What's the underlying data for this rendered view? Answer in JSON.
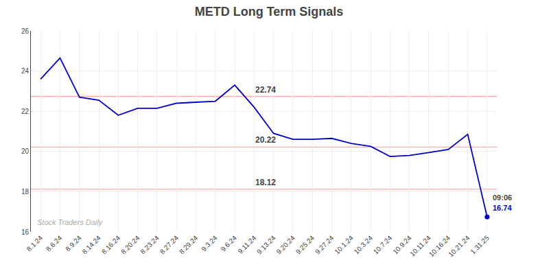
{
  "chart_data": {
    "type": "line",
    "title": "METD Long Term Signals",
    "categories": [
      "8.1.24",
      "8.6.24",
      "8.9.24",
      "8.14.24",
      "8.16.24",
      "8.20.24",
      "8.23.24",
      "8.27.24",
      "8.29.24",
      "9.3.24",
      "9.6.24",
      "9.11.24",
      "9.13.24",
      "9.20.24",
      "9.25.24",
      "9.27.24",
      "10.1.24",
      "10.3.24",
      "10.7.24",
      "10.9.24",
      "10.11.24",
      "10.16.24",
      "10.21.24",
      "1.31.25"
    ],
    "values": [
      23.6,
      24.65,
      22.7,
      22.55,
      21.8,
      22.15,
      22.15,
      22.4,
      22.45,
      22.5,
      23.3,
      22.2,
      20.9,
      20.6,
      20.6,
      20.65,
      20.4,
      20.25,
      19.75,
      19.8,
      19.95,
      20.1,
      20.85,
      16.74
    ],
    "color": "#0000cc",
    "ylim": [
      16,
      26
    ],
    "yticks": [
      16,
      18,
      20,
      22,
      24,
      26
    ],
    "grid": true,
    "hlines": [
      {
        "value": 22.74,
        "label": "22.74",
        "color": "#ffaaaa"
      },
      {
        "value": 20.22,
        "label": "20.22",
        "color": "#ffaaaa"
      },
      {
        "value": 18.12,
        "label": "18.12",
        "color": "#ffaaaa"
      }
    ],
    "annotations": [
      "09:06",
      "16.74"
    ],
    "watermark": "Stock Traders Daily"
  }
}
